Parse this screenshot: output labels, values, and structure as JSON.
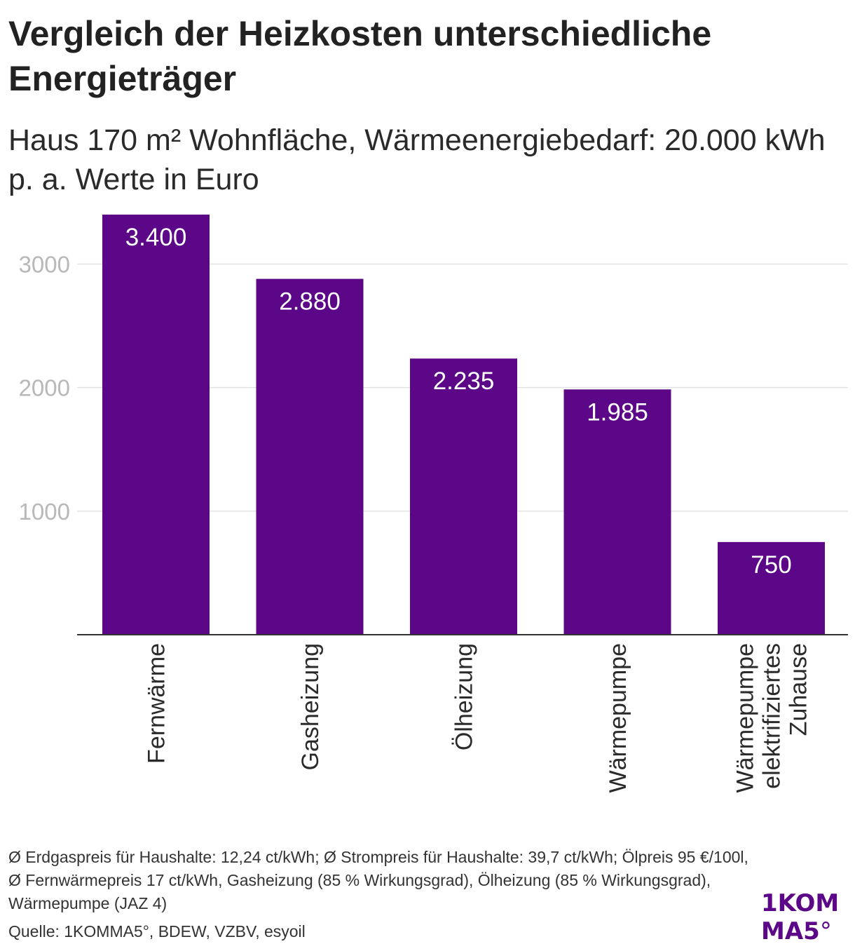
{
  "header": {
    "title": "Vergleich der Heizkosten unterschiedliche Energieträger",
    "subtitle": "Haus 170 m² Wohnfläche, Wärmeenergiebedarf: 20.000 kWh p. a. Werte in Euro"
  },
  "chart_data": {
    "type": "bar",
    "categories": [
      "Fernwärme",
      "Gasheizung",
      "Ölheizung",
      "Wärmepumpe",
      "Wärmepumpe elektrifiziertes Zuhause"
    ],
    "category_lines": [
      [
        "Fernwärme"
      ],
      [
        "Gasheizung"
      ],
      [
        "Ölheizung"
      ],
      [
        "Wärmepumpe"
      ],
      [
        "Wärmepumpe",
        "elektrifiziertes",
        "Zuhause"
      ]
    ],
    "values": [
      3400,
      2880,
      2235,
      1985,
      750
    ],
    "value_labels": [
      "3.400",
      "2.880",
      "2.235",
      "1.985",
      "750"
    ],
    "ylim": [
      0,
      3400
    ],
    "yticks": [
      1000,
      2000,
      3000
    ],
    "grid": true,
    "bar_color": "#5c0787",
    "label_color": "#ffffff"
  },
  "footer": {
    "notes": "Ø Erdgaspreis für Haushalte: 12,24 ct/kWh; Ø Strompreis für Haushalte: 39,7 ct/kWh; Ölpreis 95 €/100l, Ø Fernwärmepreis 17 ct/kWh, Gasheizung (85 % Wirkungsgrad), Ölheizung (85 % Wirkungsgrad), Wärmepumpe (JAZ 4)",
    "source": "Quelle: 1KOMMA5°, BDEW, VZBV, esyoil"
  },
  "logo": {
    "line1": "1KOM",
    "line2_main": "MA5",
    "line2_deg": "°",
    "color": "#5c0787"
  }
}
